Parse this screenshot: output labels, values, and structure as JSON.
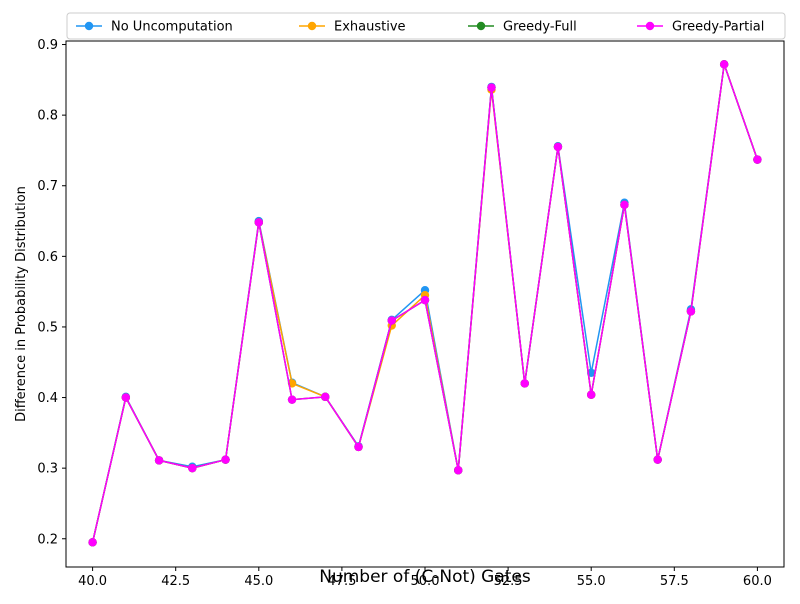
{
  "chart_data": {
    "type": "line",
    "title": "",
    "xlabel": "Number of (C-Not) Gates",
    "ylabel": "Difference in Probability Distribution",
    "xlim": [
      39.2,
      60.8
    ],
    "ylim": [
      0.16,
      0.905
    ],
    "xticks": [
      40.0,
      42.5,
      45.0,
      47.5,
      50.0,
      52.5,
      55.0,
      57.5,
      60.0
    ],
    "xtick_labels": [
      "40.0",
      "42.5",
      "45.0",
      "47.5",
      "50.0",
      "52.5",
      "55.0",
      "57.5",
      "60.0"
    ],
    "yticks": [
      0.2,
      0.3,
      0.4,
      0.5,
      0.6,
      0.7,
      0.8,
      0.9
    ],
    "ytick_labels": [
      "0.2",
      "0.3",
      "0.4",
      "0.5",
      "0.6",
      "0.7",
      "0.8",
      "0.9"
    ],
    "grid": false,
    "legend_position": "top",
    "x": [
      40,
      41,
      42,
      43,
      44,
      45,
      46,
      47,
      48,
      49,
      50,
      51,
      52,
      53,
      54,
      55,
      56,
      57,
      58,
      59,
      60
    ],
    "series": [
      {
        "name": "No Uncomputation",
        "color": "#2196f3",
        "values": [
          0.195,
          0.401,
          0.311,
          0.302,
          0.312,
          0.65,
          0.421,
          0.401,
          0.331,
          0.51,
          0.552,
          0.297,
          0.84,
          0.42,
          0.756,
          0.435,
          0.676,
          0.312,
          0.525,
          0.872,
          0.737
        ]
      },
      {
        "name": "Exhaustive",
        "color": "#ffa500",
        "values": [
          0.195,
          0.4,
          0.311,
          0.3,
          0.312,
          0.648,
          0.42,
          0.401,
          0.33,
          0.502,
          0.545,
          0.297,
          0.836,
          0.42,
          0.755,
          0.404,
          0.673,
          0.312,
          0.522,
          0.872,
          0.737
        ]
      },
      {
        "name": "Greedy-Full",
        "color": "#228b22",
        "values": [
          0.195,
          0.4,
          0.311,
          0.3,
          0.312,
          0.648,
          0.397,
          0.401,
          0.33,
          0.509,
          0.538,
          0.297,
          0.839,
          0.42,
          0.755,
          0.404,
          0.673,
          0.312,
          0.522,
          0.872,
          0.737
        ]
      },
      {
        "name": "Greedy-Partial",
        "color": "#ff00ff",
        "values": [
          0.195,
          0.4,
          0.311,
          0.3,
          0.312,
          0.648,
          0.397,
          0.401,
          0.33,
          0.509,
          0.538,
          0.297,
          0.839,
          0.42,
          0.755,
          0.404,
          0.673,
          0.312,
          0.522,
          0.872,
          0.737
        ]
      }
    ]
  }
}
